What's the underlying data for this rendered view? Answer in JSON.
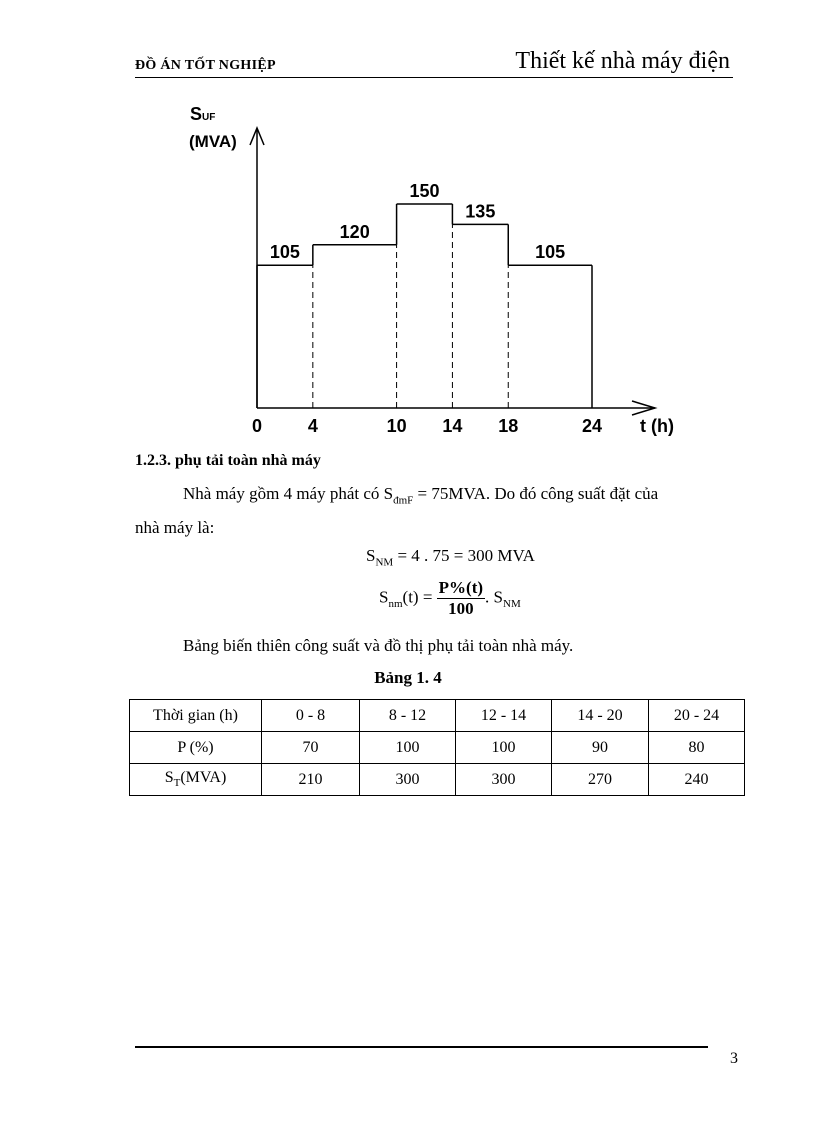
{
  "header": {
    "left": "ĐỒ ÁN TỐT NGHIỆP",
    "right": "Thiết kế nhà máy điện"
  },
  "chart_data": {
    "type": "step",
    "ylabel": "S",
    "ylabel_sub": "UF",
    "yunit": "(MVA)",
    "xlabel": "t (h)",
    "x_ticks": [
      "0",
      "4",
      "10",
      "14",
      "18",
      "24"
    ],
    "segments": [
      {
        "start": 0,
        "end": 4,
        "value": 105,
        "label": "105"
      },
      {
        "start": 4,
        "end": 10,
        "value": 120,
        "label": "120"
      },
      {
        "start": 10,
        "end": 14,
        "value": 150,
        "label": "150"
      },
      {
        "start": 14,
        "end": 18,
        "value": 135,
        "label": "135"
      },
      {
        "start": 18,
        "end": 24,
        "value": 105,
        "label": "105"
      }
    ],
    "xlim": [
      0,
      24
    ]
  },
  "section": {
    "title": "1.2.3. phụ tải toàn nhà máy"
  },
  "para1": {
    "a": "Nhà máy gồm 4 máy phát có S",
    "sub": "đmF",
    "b": " = 75MVA.  Do đó công suất đặt của",
    "line2": "nhà máy là:"
  },
  "eq1": {
    "s": "S",
    "sub": "NM",
    "rest": " = 4 . 75 = 300  MVA"
  },
  "eq2": {
    "s": "S",
    "sub": "nm",
    "t": "(t) = ",
    "num": "P%(t)",
    "den": "100",
    "tail": ". S",
    "tail_sub": "NM"
  },
  "para2": "Bảng biến thiên  công suất và đồ thị phụ tải toàn nhà máy.",
  "table": {
    "caption": "Bảng 1. 4",
    "rows": [
      [
        "Thời gian (h)",
        "0 - 8",
        "8 - 12",
        "12 - 14",
        "14 - 20",
        "20 - 24"
      ],
      [
        "P (%)",
        "70",
        "100",
        "100",
        "90",
        "80"
      ],
      [
        "S",
        "210",
        "300",
        "300",
        "270",
        "240"
      ]
    ],
    "row3_sub": "T",
    "row3_unit": "(MVA)"
  },
  "footer": {
    "page": "3"
  }
}
